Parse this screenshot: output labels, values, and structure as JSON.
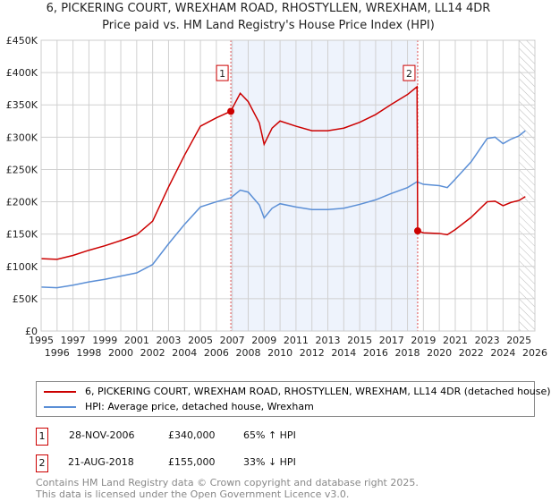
{
  "chart_data": {
    "type": "line",
    "title": "6, PICKERING COURT, WREXHAM ROAD, RHOSTYLLEN, WREXHAM, LL14 4DR",
    "subtitle": "Price paid vs. HM Land Registry's House Price Index (HPI)",
    "xlim": [
      1995,
      2026
    ],
    "ylim": [
      0,
      450000
    ],
    "x_ticks": [
      "1995",
      "1996",
      "1997",
      "1998",
      "1999",
      "2000",
      "2001",
      "2002",
      "2003",
      "2004",
      "2005",
      "2006",
      "2007",
      "2008",
      "2009",
      "2010",
      "2011",
      "2012",
      "2013",
      "2014",
      "2015",
      "2016",
      "2017",
      "2018",
      "2019",
      "2020",
      "2021",
      "2022",
      "2023",
      "2024",
      "2025",
      "2026"
    ],
    "y_ticks": [
      {
        "v": 0,
        "label": "£0"
      },
      {
        "v": 50000,
        "label": "£50K"
      },
      {
        "v": 100000,
        "label": "£100K"
      },
      {
        "v": 150000,
        "label": "£150K"
      },
      {
        "v": 200000,
        "label": "£200K"
      },
      {
        "v": 250000,
        "label": "£250K"
      },
      {
        "v": 300000,
        "label": "£300K"
      },
      {
        "v": 350000,
        "label": "£350K"
      },
      {
        "v": 400000,
        "label": "£400K"
      },
      {
        "v": 450000,
        "label": "£450K"
      }
    ],
    "shaded_range": [
      2006.91,
      2018.64
    ],
    "hatched_from": 2025.0,
    "series": [
      {
        "name": "6, PICKERING COURT, WREXHAM ROAD, RHOSTYLLEN, WREXHAM, LL14 4DR (detached house)",
        "color": "#cc0000",
        "x": [
          1995,
          1996,
          1997,
          1998,
          1999,
          2000,
          2001,
          2002,
          2003,
          2004,
          2005,
          2006,
          2006.9,
          2007.5,
          2008,
          2008.7,
          2009,
          2009.5,
          2010,
          2011,
          2012,
          2013,
          2014,
          2015,
          2016,
          2017,
          2018,
          2018.6,
          2018.64,
          2019,
          2020,
          2020.5,
          2021,
          2022,
          2023,
          2023.5,
          2024,
          2024.5,
          2025,
          2025.4
        ],
        "y": [
          112000,
          111000,
          117000,
          125000,
          132000,
          140000,
          149000,
          170000,
          223000,
          272000,
          317000,
          330000,
          340000,
          368000,
          355000,
          322000,
          289000,
          314000,
          325000,
          317000,
          310000,
          310000,
          314000,
          323000,
          335000,
          351000,
          366000,
          378000,
          155000,
          152000,
          151000,
          149000,
          157000,
          176000,
          200000,
          201000,
          194000,
          199000,
          202000,
          208000
        ]
      },
      {
        "name": "HPI: Average price, detached house, Wrexham",
        "color": "#5b8fd6",
        "x": [
          1995,
          1996,
          1997,
          1998,
          1999,
          2000,
          2001,
          2002,
          2003,
          2004,
          2005,
          2006,
          2006.9,
          2007.5,
          2008,
          2008.7,
          2009,
          2009.5,
          2010,
          2011,
          2012,
          2013,
          2014,
          2015,
          2016,
          2017,
          2018,
          2018.6,
          2019,
          2020,
          2020.5,
          2021,
          2022,
          2023,
          2023.5,
          2024,
          2024.5,
          2025,
          2025.4
        ],
        "y": [
          68000,
          67000,
          71000,
          76000,
          80000,
          85000,
          90000,
          103000,
          135000,
          165000,
          192000,
          200000,
          206000,
          218000,
          215000,
          195000,
          175000,
          190000,
          197000,
          192000,
          188000,
          188000,
          190000,
          196000,
          203000,
          213000,
          222000,
          231000,
          227000,
          225000,
          222000,
          235000,
          262000,
          298000,
          300000,
          290000,
          297000,
          302000,
          310000
        ]
      }
    ],
    "sales": [
      {
        "label": "1",
        "x": 2006.91,
        "y": 340000,
        "date": "28-NOV-2006",
        "price": "£340,000",
        "hpi": "65% ↑ HPI"
      },
      {
        "label": "2",
        "x": 2018.64,
        "y": 155000,
        "date": "21-AUG-2018",
        "price": "£155,000",
        "hpi": "33% ↓ HPI"
      }
    ]
  },
  "footer": [
    "Contains HM Land Registry data © Crown copyright and database right 2025.",
    "This data is licensed under the Open Government Licence v3.0."
  ]
}
